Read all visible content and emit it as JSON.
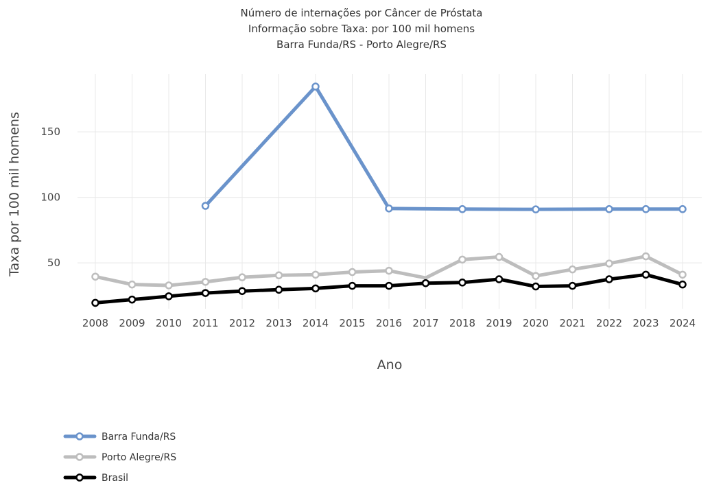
{
  "chart_data": {
    "type": "line",
    "title": [
      "Número de internações por Câncer de Próstata",
      "Informação sobre Taxa: por 100 mil homens",
      "Barra Funda/RS - Porto Alegre/RS"
    ],
    "xlabel": "Ano",
    "ylabel": "Taxa por 100 mil homens",
    "x": [
      "2008",
      "2009",
      "2010",
      "2011",
      "2012",
      "2013",
      "2014",
      "2015",
      "2016",
      "2017",
      "2018",
      "2019",
      "2020",
      "2021",
      "2022",
      "2023",
      "2024"
    ],
    "yticks": [
      50,
      100,
      150
    ],
    "ylim": [
      15,
      194
    ],
    "grid": true,
    "legend_position": "bottom-left",
    "series": [
      {
        "name": "Barra Funda/RS",
        "color": "#6a93cb",
        "values": [
          null,
          null,
          null,
          93.5,
          null,
          null,
          184.5,
          null,
          91.5,
          null,
          91,
          null,
          90.8,
          null,
          91,
          91,
          91
        ],
        "markers": [
          false,
          false,
          false,
          true,
          false,
          false,
          true,
          false,
          true,
          false,
          true,
          false,
          true,
          false,
          true,
          true,
          true
        ]
      },
      {
        "name": "Porto Alegre/RS",
        "color": "#bdbdbd",
        "values": [
          39.5,
          33.5,
          32.8,
          35.5,
          39,
          40.5,
          41,
          43,
          44,
          38.5,
          52.5,
          54.5,
          40,
          45,
          49.5,
          55,
          41
        ],
        "markers": [
          true,
          true,
          true,
          true,
          true,
          true,
          true,
          true,
          true,
          false,
          true,
          true,
          true,
          true,
          true,
          true,
          true
        ]
      },
      {
        "name": "Brasil",
        "color": "#000000",
        "values": [
          19.5,
          22,
          24.5,
          27,
          28.5,
          29.5,
          30.5,
          32.5,
          32.5,
          34.5,
          35,
          37.5,
          32,
          32.5,
          37.5,
          41,
          33.5
        ],
        "markers": [
          true,
          true,
          true,
          true,
          true,
          true,
          true,
          true,
          true,
          true,
          true,
          true,
          true,
          true,
          true,
          true,
          true
        ]
      }
    ]
  }
}
